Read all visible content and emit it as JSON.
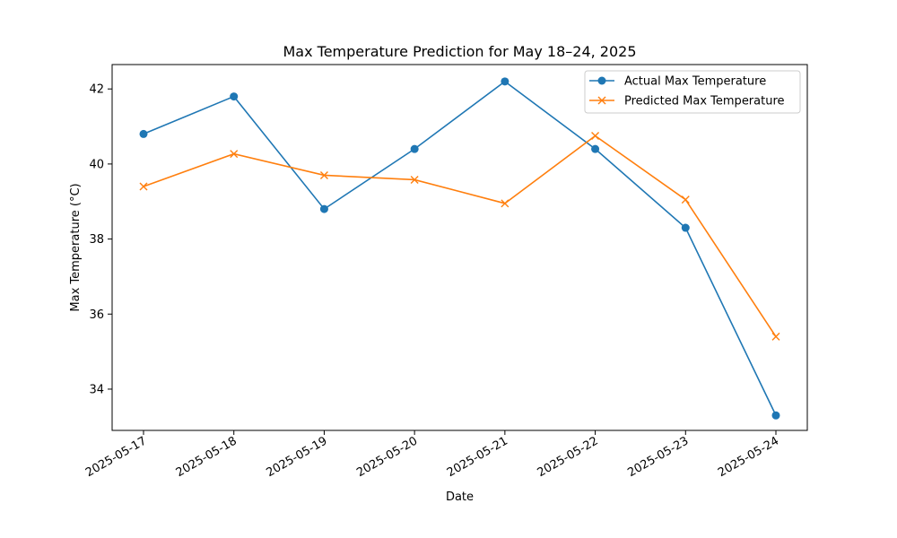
{
  "chart_data": {
    "type": "line",
    "title": "Max Temperature Prediction for May 18–24, 2025",
    "xlabel": "Date",
    "ylabel": "Max Temperature (°C)",
    "categories": [
      "2025-05-17",
      "2025-05-18",
      "2025-05-19",
      "2025-05-20",
      "2025-05-21",
      "2025-05-22",
      "2025-05-23",
      "2025-05-24"
    ],
    "ylim": [
      32.9,
      42.65
    ],
    "yticks": [
      34,
      36,
      38,
      40,
      42
    ],
    "grid": false,
    "legend_position": "top-right",
    "series": [
      {
        "name": "Actual Max Temperature",
        "color": "#1f77b4",
        "marker": "circle",
        "values": [
          40.8,
          41.8,
          38.8,
          40.4,
          42.2,
          40.4,
          38.3,
          33.3
        ]
      },
      {
        "name": "Predicted Max Temperature",
        "color": "#ff7f0e",
        "marker": "x",
        "values": [
          39.4,
          40.27,
          39.7,
          39.58,
          38.95,
          40.75,
          39.05,
          35.4
        ]
      }
    ]
  }
}
